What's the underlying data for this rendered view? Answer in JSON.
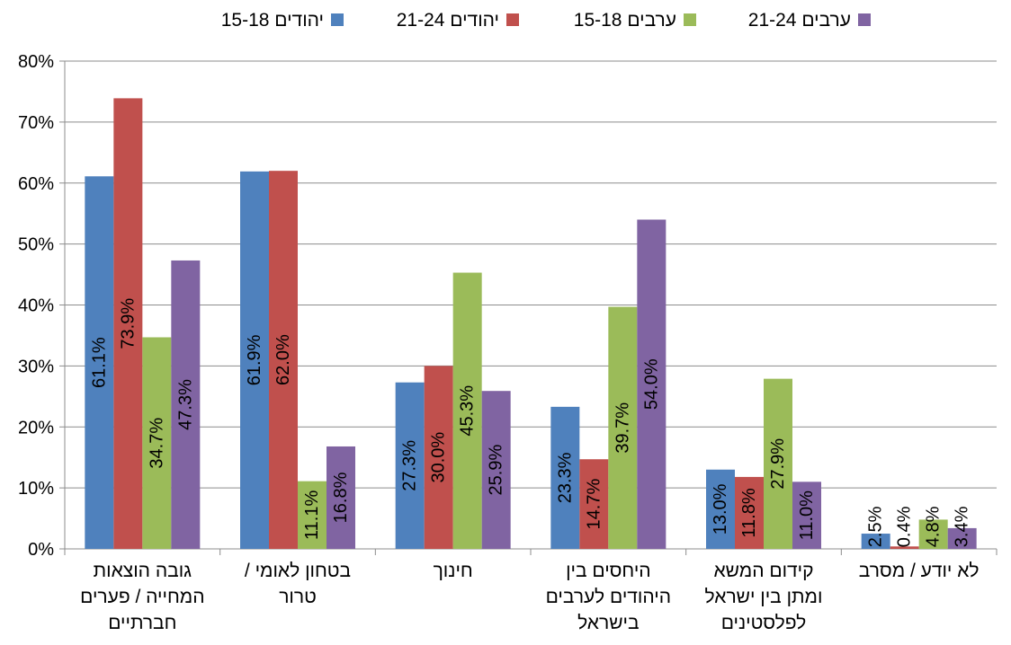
{
  "chart_data": {
    "type": "bar",
    "categories": [
      [
        "גובה הוצאות",
        "המחייה / פערים",
        "חברתיים"
      ],
      [
        "בטחון לאומי /",
        "טרור"
      ],
      [
        "חינוך"
      ],
      [
        "היחסים בין",
        "היהודים לערבים",
        "בישראל"
      ],
      [
        "קידום המשא",
        "ומתן בין ישראל",
        "לפלסטינים"
      ],
      [
        "לא יודע / מסרב"
      ]
    ],
    "series": [
      {
        "name": "יהודים 15-18",
        "color": "#4F81BD",
        "values": [
          61.1,
          61.9,
          27.3,
          23.3,
          13.0,
          2.5
        ]
      },
      {
        "name": "יהודים 21-24",
        "color": "#C0504D",
        "values": [
          73.9,
          62.0,
          30.0,
          14.7,
          11.8,
          0.4
        ]
      },
      {
        "name": "ערבים 15-18",
        "color": "#9BBB59",
        "values": [
          34.7,
          11.1,
          45.3,
          39.7,
          27.9,
          4.8
        ]
      },
      {
        "name": "ערבים 21-24",
        "color": "#8064A2",
        "values": [
          47.3,
          16.8,
          25.9,
          54.0,
          11.0,
          3.4
        ]
      }
    ],
    "yticks": [
      "0%",
      "10%",
      "20%",
      "30%",
      "40%",
      "50%",
      "60%",
      "70%",
      "80%"
    ],
    "ylim": [
      0,
      80
    ],
    "grid": true,
    "legend_position": "top",
    "data_label_suffix": "%"
  }
}
